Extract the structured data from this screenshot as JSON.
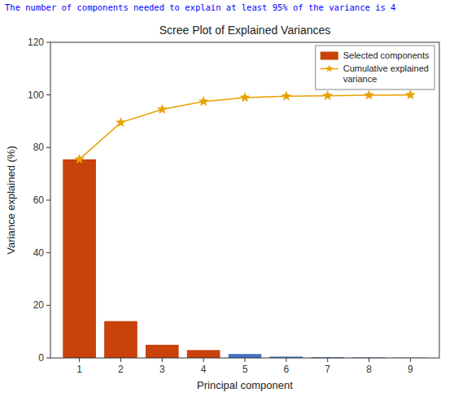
{
  "chart_data": {
    "type": "bar",
    "title": "Scree Plot of Explained Variances",
    "subtitle": "The number of components needed to explain at least 95% of the variance is 4",
    "x_label": "Principal component",
    "y_label": "Variance explained (%)",
    "x": [
      1,
      2,
      3,
      4,
      5,
      6,
      7,
      8,
      9
    ],
    "xlim": [
      0.3,
      9.7
    ],
    "xticks": [
      1,
      2,
      3,
      4,
      5,
      6,
      7,
      8,
      9
    ],
    "ylim": [
      0,
      120
    ],
    "yticks": [
      0,
      20,
      40,
      60,
      80,
      100,
      120
    ],
    "grid": false,
    "legend": "upper right",
    "series": [
      {
        "name": "Selected components",
        "type": "bar",
        "colors": [
          "#c8420a",
          "#c8420a",
          "#c8420a",
          "#c8420a",
          "#4472c4",
          "#4472c4",
          "#4472c4",
          "#4472c4",
          "#4472c4"
        ],
        "values": [
          75.5,
          14.0,
          5.0,
          3.0,
          1.5,
          0.5,
          0.3,
          0.2,
          0.1
        ]
      },
      {
        "name": "Cumulative explained\nvariance",
        "type": "line",
        "color": "#e8a000",
        "marker": "star",
        "values": [
          75.5,
          89.5,
          94.5,
          97.5,
          99.0,
          99.5,
          99.7,
          99.9,
          100.0
        ]
      }
    ]
  }
}
